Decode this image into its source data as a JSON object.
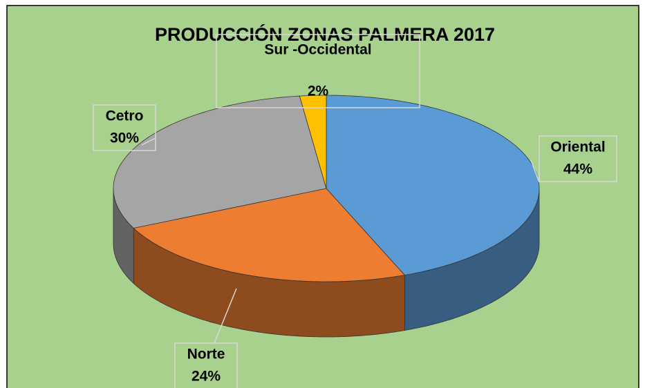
{
  "chart_data": {
    "type": "pie3d",
    "title": "PRODUCCIÓN ZONAS PALMERA 2017",
    "categories": [
      "Oriental",
      "Norte",
      "Cetro",
      "Sur -Occidental"
    ],
    "values": [
      44,
      24,
      30,
      2
    ],
    "value_labels": [
      "44%",
      "24%",
      "30%",
      "2%"
    ],
    "colors": [
      "#5b9bd5",
      "#ed7d31",
      "#a5a5a5",
      "#ffc000"
    ]
  }
}
